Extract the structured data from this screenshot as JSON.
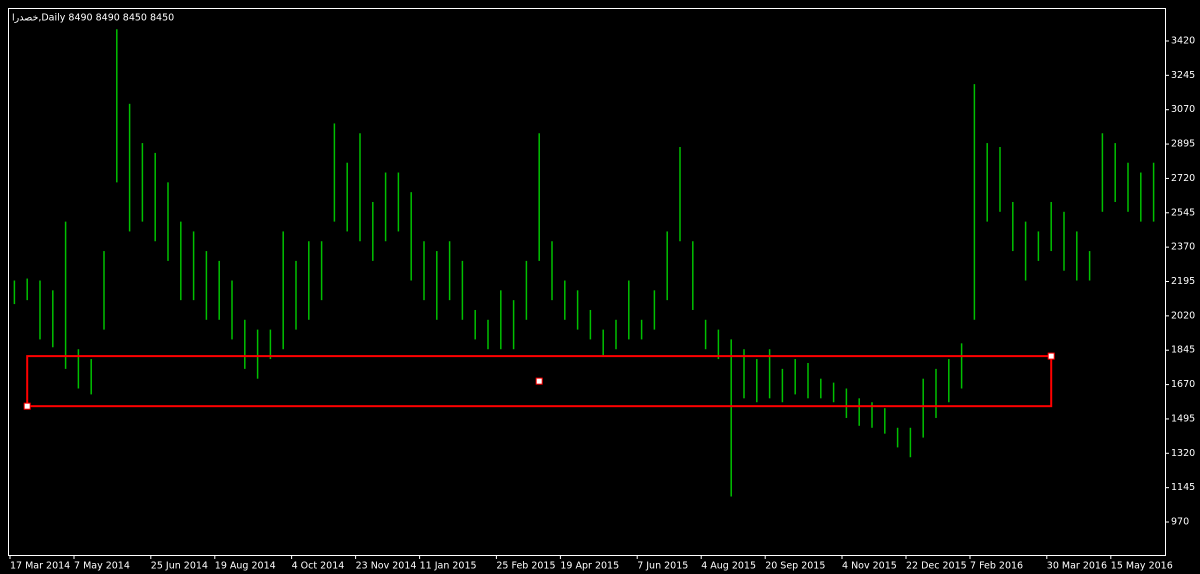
{
  "chart_data": {
    "type": "range-bar",
    "title": "خصدرا,Daily  8490 8490 8450 8450",
    "color": "#00c000",
    "categories": [
      "17 Mar 2014",
      null,
      null,
      null,
      null,
      "7 May 2014",
      null,
      null,
      null,
      null,
      null,
      "25 Jun 2014",
      null,
      null,
      null,
      null,
      "19 Aug 2014",
      null,
      null,
      null,
      null,
      null,
      "4 Oct 2014",
      null,
      null,
      null,
      null,
      "23 Nov 2014",
      null,
      null,
      null,
      null,
      "11 Jan 2015",
      null,
      null,
      null,
      null,
      null,
      "25 Feb 2015",
      null,
      null,
      null,
      null,
      "19 Apr 2015",
      null,
      null,
      null,
      null,
      null,
      "7 Jun 2015",
      null,
      null,
      null,
      null,
      "4 Aug 2015",
      null,
      null,
      null,
      null,
      "20 Sep 2015",
      null,
      null,
      null,
      null,
      null,
      "4 Nov 2015",
      null,
      null,
      null,
      null,
      "22 Dec 2015",
      null,
      null,
      null,
      null,
      "7 Feb 2016",
      null,
      null,
      null,
      null,
      null,
      "30 Mar 2016",
      null,
      null,
      null,
      null,
      "15 May 2016",
      null,
      null,
      null
    ],
    "high": [
      2200,
      2210,
      2200,
      2150,
      2500,
      1850,
      1800,
      2350,
      3480,
      3100,
      2900,
      2850,
      2700,
      2500,
      2450,
      2350,
      2300,
      2200,
      2000,
      1950,
      1950,
      2450,
      2300,
      2400,
      2400,
      3000,
      2800,
      2950,
      2600,
      2750,
      2750,
      2650,
      2400,
      2350,
      2400,
      2300,
      2050,
      2000,
      2150,
      2100,
      2300,
      2950,
      2400,
      2200,
      2150,
      2050,
      1950,
      2000,
      2200,
      2000,
      2150,
      2450,
      2880,
      2400,
      2000,
      1950,
      1900,
      1850,
      1800,
      1850,
      1750,
      1800,
      1780,
      1700,
      1680,
      1650,
      1600,
      1580,
      1550,
      1450,
      1450,
      1700,
      1750,
      1800,
      1880,
      3200,
      2900,
      2880,
      2600,
      2500,
      2450,
      2600,
      2550,
      2450,
      2350,
      2950,
      2900,
      2800,
      2750,
      2800
    ],
    "low": [
      2080,
      2100,
      1900,
      1860,
      1750,
      1650,
      1620,
      1950,
      2700,
      2450,
      2500,
      2400,
      2300,
      2100,
      2100,
      2000,
      2000,
      1900,
      1750,
      1700,
      1800,
      1850,
      1950,
      2000,
      2100,
      2500,
      2450,
      2400,
      2300,
      2400,
      2450,
      2200,
      2100,
      2000,
      2100,
      2000,
      1900,
      1850,
      1850,
      1850,
      2000,
      2300,
      2100,
      2000,
      1950,
      1900,
      1820,
      1850,
      1900,
      1900,
      1950,
      2100,
      2400,
      2050,
      1850,
      1800,
      1100,
      1600,
      1580,
      1600,
      1580,
      1620,
      1600,
      1600,
      1580,
      1500,
      1460,
      1450,
      1420,
      1350,
      1300,
      1400,
      1500,
      1580,
      1650,
      2000,
      2500,
      2550,
      2350,
      2200,
      2300,
      2350,
      2250,
      2200,
      2200,
      2550,
      2600,
      2550,
      2500,
      2500
    ],
    "rectangle": {
      "color": "#ff0000",
      "x0": 1,
      "x1": 81,
      "y0": 1560,
      "y1": 1815
    },
    "ylim": [
      802,
      3588
    ],
    "yticks": [
      3420,
      3245,
      3070,
      2895,
      2720,
      2545,
      2370,
      2195,
      2020,
      1845,
      1670,
      1495,
      1320,
      1145,
      970
    ]
  }
}
